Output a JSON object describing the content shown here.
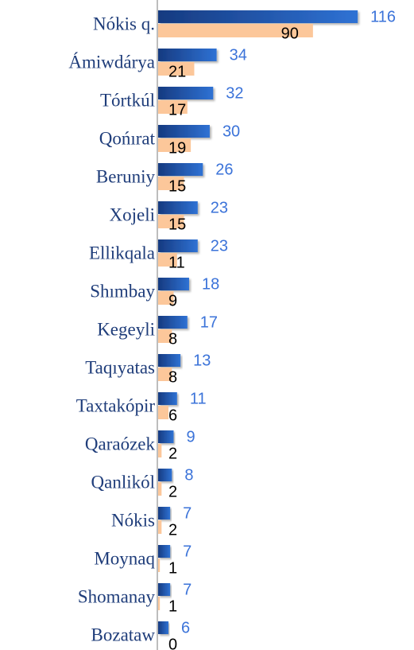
{
  "chart_data": {
    "type": "bar",
    "orientation": "horizontal",
    "categories": [
      "Nókis q.",
      "Ámiwdárya",
      "Tórtkúl",
      "Qońırat",
      "Beruniy",
      "Xojeli",
      "Ellikqala",
      "Shımbay",
      "Kegeyli",
      "Taqıyatas",
      "Taxtakópir",
      "Qaraózek",
      "Qanlikól",
      "Nókis",
      "Moynaq",
      "Shomanay",
      "Bozataw"
    ],
    "series": [
      {
        "color": "#1f5fc0",
        "values": [
          116,
          34,
          32,
          30,
          26,
          23,
          23,
          18,
          17,
          13,
          11,
          9,
          8,
          7,
          7,
          7,
          6
        ]
      },
      {
        "color": "#fcc79a",
        "values": [
          90,
          21,
          17,
          19,
          15,
          15,
          11,
          9,
          8,
          8,
          6,
          2,
          2,
          2,
          1,
          1,
          0
        ]
      }
    ],
    "xlim": [
      0,
      120
    ]
  }
}
